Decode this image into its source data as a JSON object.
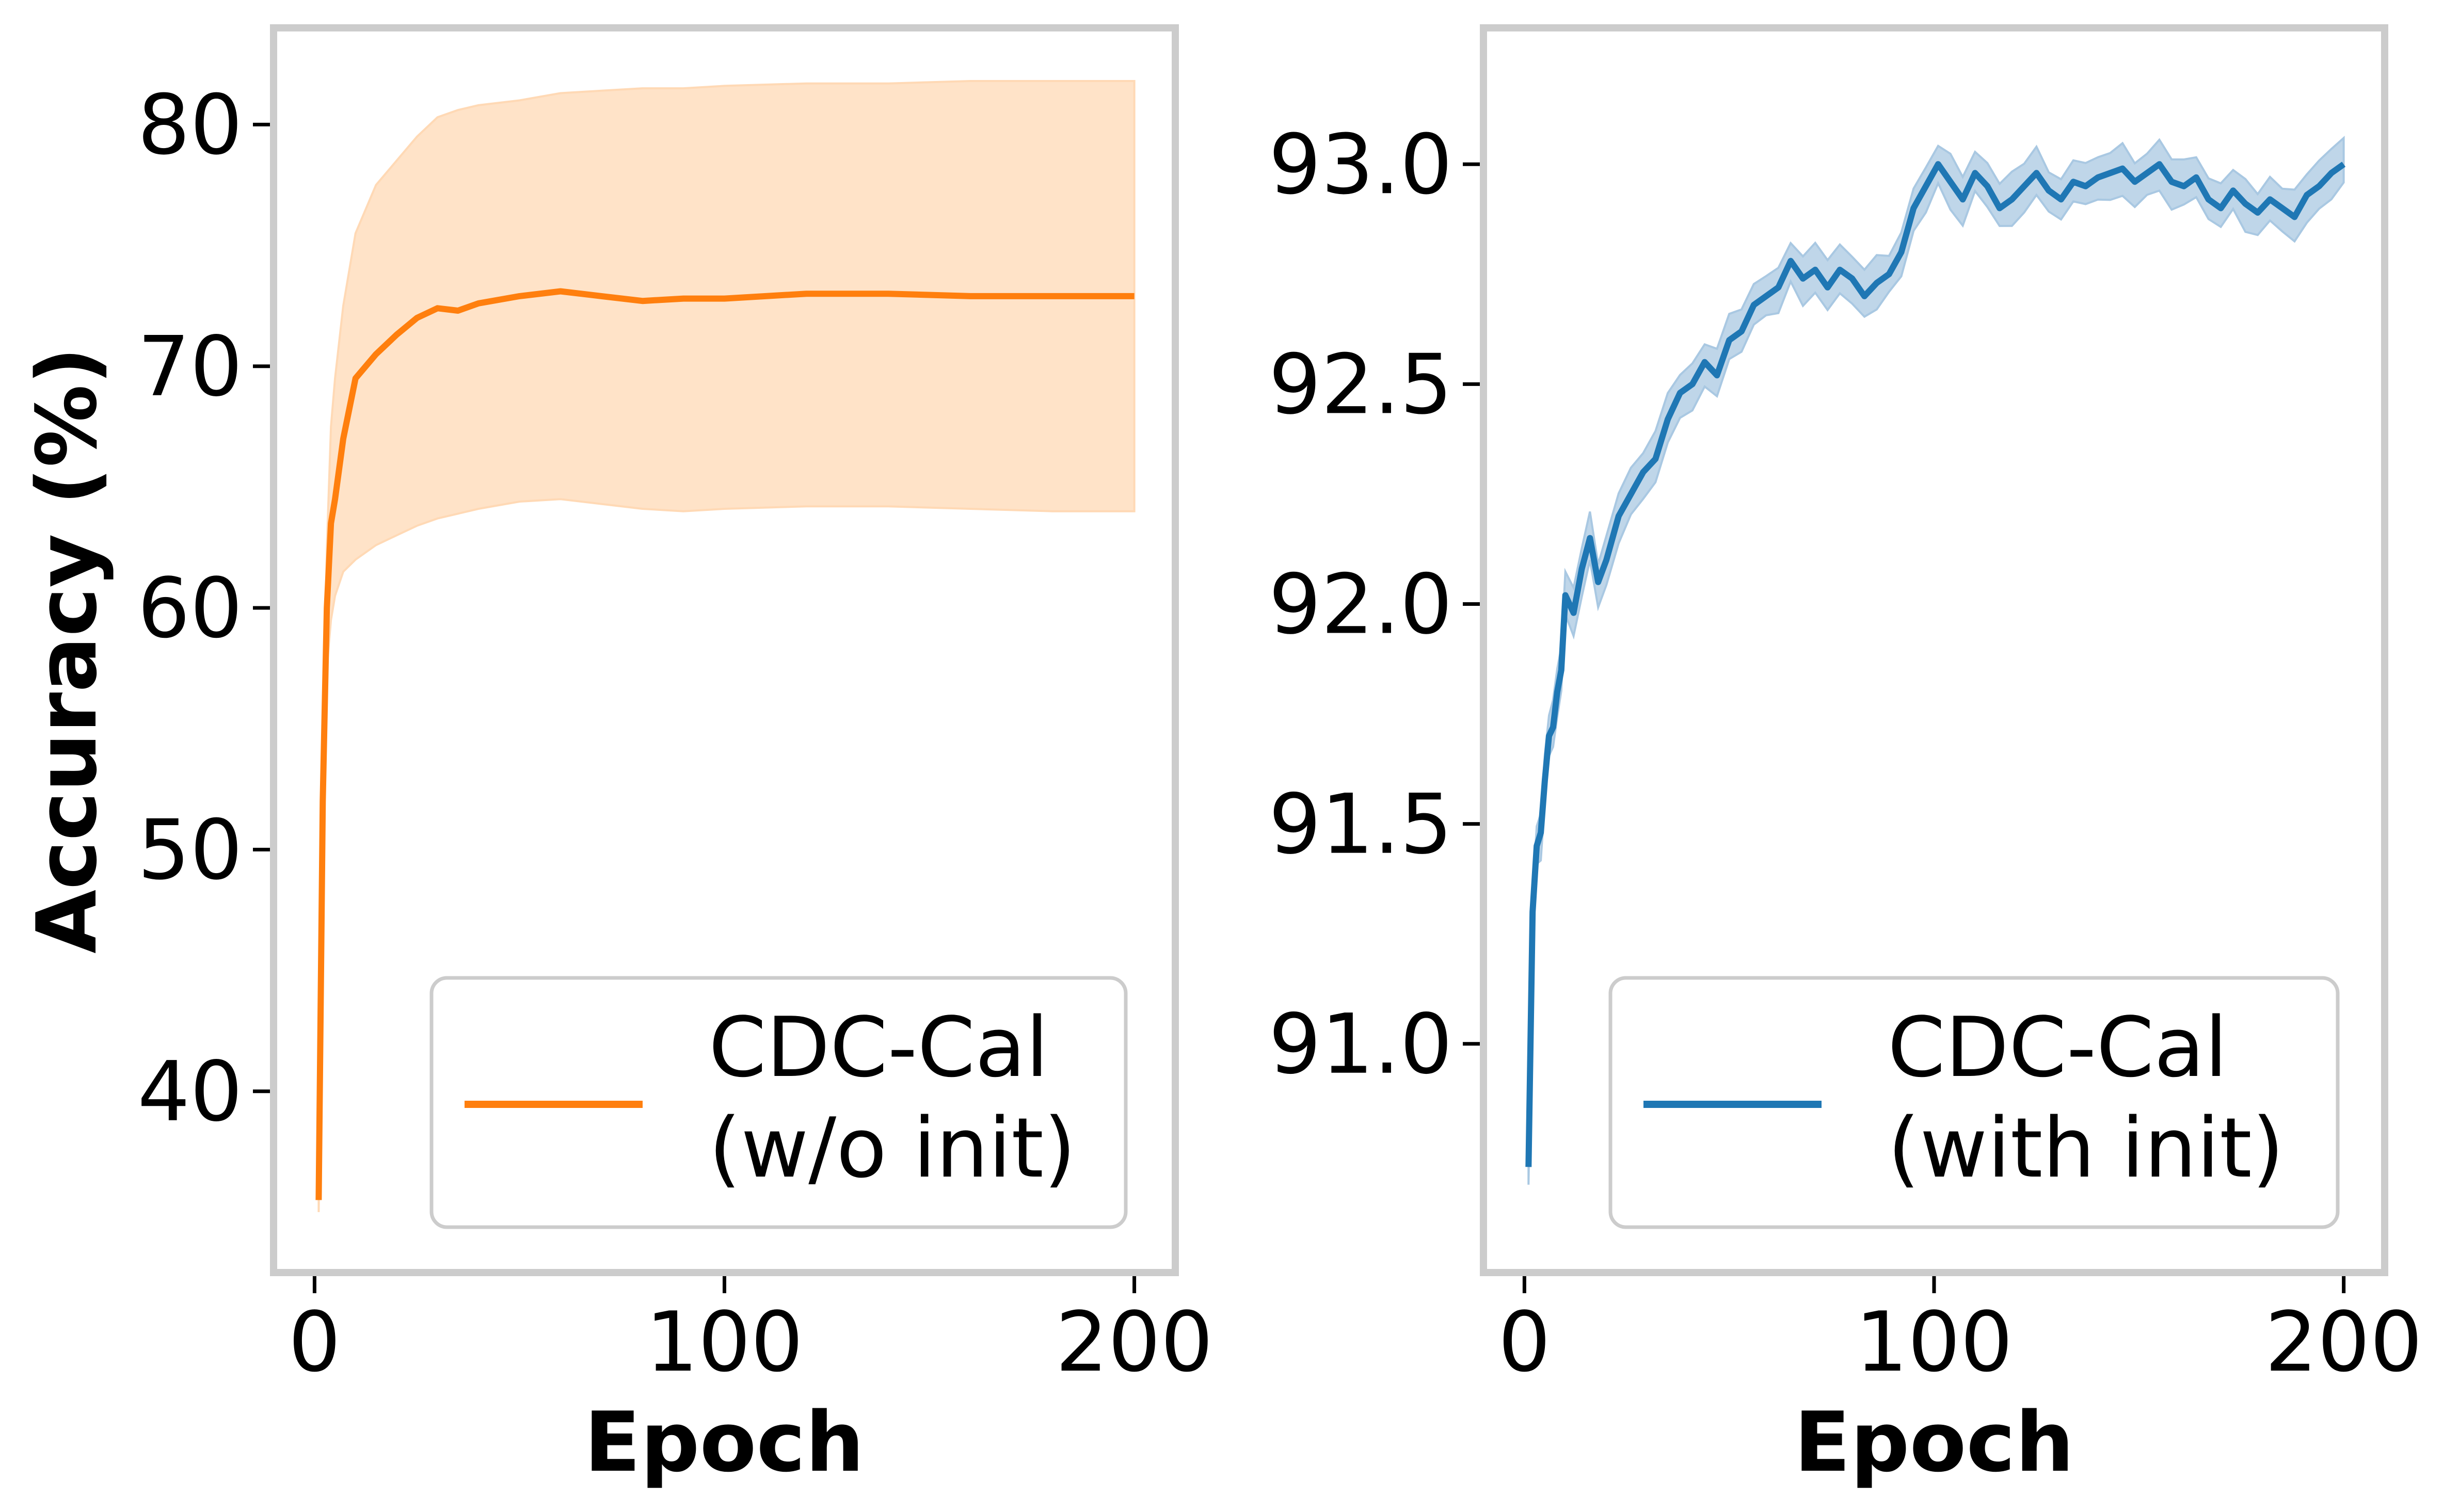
{
  "chart_data": [
    {
      "type": "line",
      "panel": "left",
      "title": "",
      "xlabel": "Epoch",
      "ylabel": "Accuracy (%)",
      "xlim": [
        -10,
        210
      ],
      "ylim": [
        32.5,
        84.0
      ],
      "xticks": [
        0,
        100,
        200
      ],
      "xtick_labels": [
        "0",
        "100",
        "200"
      ],
      "yticks": [
        40,
        50,
        60,
        70,
        80
      ],
      "ytick_labels": [
        "40",
        "50",
        "60",
        "70",
        "80"
      ],
      "grid": false,
      "legend_location": "lower-right",
      "legend_labels": [
        "CDC-Cal",
        "(w/o init)"
      ],
      "color": "#ff7f0e",
      "band_color": "#ffd9b5",
      "series": [
        {
          "name": "CDC-Cal (w/o init)",
          "x": [
            1,
            2,
            3,
            4,
            5,
            7,
            10,
            15,
            20,
            25,
            30,
            35,
            40,
            50,
            60,
            70,
            80,
            90,
            100,
            120,
            140,
            160,
            180,
            200
          ],
          "values": [
            35.5,
            52.0,
            60.0,
            63.5,
            64.5,
            67.0,
            69.5,
            70.5,
            71.3,
            72.0,
            72.4,
            72.3,
            72.6,
            72.9,
            73.1,
            72.9,
            72.7,
            72.8,
            72.8,
            73.0,
            73.0,
            72.9,
            72.9,
            72.9
          ],
          "lower": [
            35.0,
            50.5,
            57.5,
            59.5,
            60.5,
            61.5,
            62.0,
            62.6,
            63.0,
            63.4,
            63.7,
            63.9,
            64.1,
            64.4,
            64.5,
            64.3,
            64.1,
            64.0,
            64.1,
            64.2,
            64.2,
            64.1,
            64.0,
            64.0
          ],
          "upper": [
            36.0,
            53.5,
            62.5,
            67.5,
            69.5,
            72.5,
            75.5,
            77.5,
            78.5,
            79.5,
            80.3,
            80.6,
            80.8,
            81.0,
            81.3,
            81.4,
            81.5,
            81.5,
            81.6,
            81.7,
            81.7,
            81.8,
            81.8,
            81.8
          ]
        }
      ]
    },
    {
      "type": "line",
      "panel": "right",
      "title": "",
      "xlabel": "Epoch",
      "ylabel": "",
      "xlim": [
        -10,
        210
      ],
      "ylim": [
        90.48,
        93.31
      ],
      "xticks": [
        0,
        100,
        200
      ],
      "xtick_labels": [
        "0",
        "100",
        "200"
      ],
      "yticks": [
        91.0,
        91.5,
        92.0,
        92.5,
        93.0
      ],
      "ytick_labels": [
        "91.0",
        "91.5",
        "92.0",
        "92.5",
        "93.0"
      ],
      "grid": false,
      "legend_location": "lower-right",
      "legend_labels": [
        "CDC-Cal",
        "(with init)"
      ],
      "color": "#1f77b4",
      "band_color": "#a9c8e2",
      "band_halfwidth": 0.04,
      "series": [
        {
          "name": "CDC-Cal (with init)",
          "x": [
            1,
            2,
            3,
            4,
            5,
            6,
            7,
            8,
            9,
            10,
            12,
            14,
            16,
            18,
            20,
            23,
            26,
            29,
            32,
            35,
            38,
            41,
            44,
            47,
            50,
            53,
            56,
            59,
            62,
            65,
            68,
            71,
            74,
            77,
            80,
            83,
            86,
            89,
            92,
            95,
            98,
            101,
            104,
            107,
            110,
            113,
            116,
            119,
            122,
            125,
            128,
            131,
            134,
            137,
            140,
            143,
            146,
            149,
            152,
            155,
            158,
            161,
            164,
            167,
            170,
            173,
            176,
            179,
            182,
            185,
            188,
            191,
            194,
            197,
            200
          ],
          "values": [
            90.72,
            91.3,
            91.45,
            91.48,
            91.6,
            91.7,
            91.72,
            91.8,
            91.85,
            92.02,
            91.98,
            92.08,
            92.15,
            92.05,
            92.1,
            92.2,
            92.25,
            92.3,
            92.33,
            92.42,
            92.48,
            92.5,
            92.55,
            92.52,
            92.6,
            92.62,
            92.68,
            92.7,
            92.72,
            92.78,
            92.74,
            92.76,
            92.72,
            92.76,
            92.74,
            92.7,
            92.73,
            92.75,
            92.8,
            92.9,
            92.95,
            93.0,
            92.96,
            92.92,
            92.98,
            92.95,
            92.9,
            92.92,
            92.95,
            92.98,
            92.94,
            92.92,
            92.96,
            92.95,
            92.97,
            92.98,
            92.99,
            92.96,
            92.98,
            93.0,
            92.96,
            92.95,
            92.97,
            92.92,
            92.9,
            92.94,
            92.91,
            92.89,
            92.92,
            92.9,
            92.88,
            92.93,
            92.95,
            92.98,
            93.0
          ]
        }
      ]
    }
  ]
}
